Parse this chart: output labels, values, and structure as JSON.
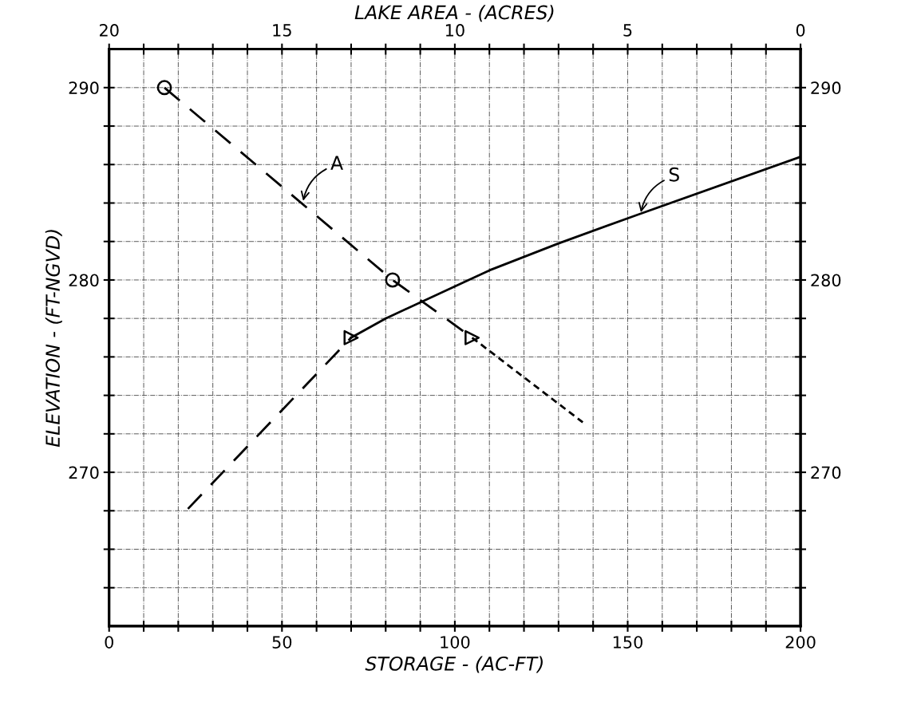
{
  "chart_data": {
    "type": "line",
    "xlabel": "STORAGE - (AC-FT)",
    "x2label": "LAKE AREA - (ACRES)",
    "ylabel": "ELEVATION - (FT-NGVD)",
    "xlim": [
      0,
      200
    ],
    "xticks": [
      0,
      {
        "value": 10,
        "label": null
      },
      {
        "value": 20,
        "label": null
      },
      {
        "value": 30,
        "label": null
      },
      {
        "value": 40,
        "label": null
      },
      50,
      {
        "value": 60,
        "label": null
      },
      {
        "value": 70,
        "label": null
      },
      {
        "value": 80,
        "label": null
      },
      {
        "value": 90,
        "label": null
      },
      100,
      {
        "value": 110,
        "label": null
      },
      {
        "value": 120,
        "label": null
      },
      {
        "value": 130,
        "label": null
      },
      {
        "value": 140,
        "label": null
      },
      150,
      {
        "value": 160,
        "label": null
      },
      {
        "value": 170,
        "label": null
      },
      {
        "value": 180,
        "label": null
      },
      {
        "value": 190,
        "label": null
      },
      200
    ],
    "x2lim": [
      20,
      0
    ],
    "x2ticks": [
      20,
      {
        "value": 19,
        "label": null
      },
      {
        "value": 18,
        "label": null
      },
      {
        "value": 17,
        "label": null
      },
      {
        "value": 16,
        "label": null
      },
      15,
      {
        "value": 14,
        "label": null
      },
      {
        "value": 13,
        "label": null
      },
      {
        "value": 12,
        "label": null
      },
      {
        "value": 11,
        "label": null
      },
      10,
      {
        "value": 9,
        "label": null
      },
      {
        "value": 8,
        "label": null
      },
      {
        "value": 7,
        "label": null
      },
      {
        "value": 6,
        "label": null
      },
      5,
      {
        "value": 4,
        "label": null
      },
      {
        "value": 3,
        "label": null
      },
      {
        "value": 2,
        "label": null
      },
      {
        "value": 1,
        "label": null
      },
      0
    ],
    "ylim": [
      262,
      292
    ],
    "yticks": [
      {
        "value": 264,
        "label": null
      },
      {
        "value": 266,
        "label": null
      },
      {
        "value": 268,
        "label": null
      },
      270,
      {
        "value": 272,
        "label": null
      },
      {
        "value": 274,
        "label": null
      },
      {
        "value": 276,
        "label": null
      },
      {
        "value": 278,
        "label": null
      },
      280,
      {
        "value": 282,
        "label": null
      },
      {
        "value": 284,
        "label": null
      },
      {
        "value": 286,
        "label": null
      },
      {
        "value": 288,
        "label": null
      },
      290
    ],
    "y2lim": [
      262,
      292
    ],
    "y2ticks": [
      {
        "value": 264,
        "label": null
      },
      {
        "value": 266,
        "label": null
      },
      {
        "value": 268,
        "label": null
      },
      270,
      {
        "value": 272,
        "label": null
      },
      {
        "value": 274,
        "label": null
      },
      {
        "value": 276,
        "label": null
      },
      {
        "value": 278,
        "label": null
      },
      280,
      {
        "value": 282,
        "label": null
      },
      {
        "value": 284,
        "label": null
      },
      {
        "value": 286,
        "label": null
      },
      {
        "value": 288,
        "label": null
      },
      290
    ],
    "grid": true,
    "series": [
      {
        "axis": "x2",
        "color": "#000000",
        "line_style": "dashed",
        "marker": "none",
        "x": [
          18.4,
          11.8,
          9.5
        ],
        "values": [
          290,
          280,
          277
        ]
      },
      {
        "axis": "x2",
        "color": "#000000",
        "line_style": "dotted",
        "marker": "none",
        "x": [
          9.5,
          6.3
        ],
        "values": [
          277,
          272.6
        ]
      },
      {
        "color": "#000000",
        "line_style": "dashed",
        "marker": "none",
        "x": [
          22.8,
          70
        ],
        "values": [
          268.1,
          277
        ]
      },
      {
        "color": "#000000",
        "line_style": "solid",
        "marker": "none",
        "x": [
          70,
          80,
          104,
          110,
          130,
          153,
          200
        ],
        "values": [
          277,
          278,
          280,
          280.5,
          281.9,
          283.4,
          286.4
        ]
      },
      {
        "type": "scatter",
        "axis": "x2",
        "color": "#000000",
        "marker": "circle",
        "x": [
          18.4,
          11.8
        ],
        "values": [
          290,
          280
        ]
      },
      {
        "type": "scatter",
        "axis": "x2",
        "color": "#000000",
        "marker": "triangle",
        "x": [
          9.5
        ],
        "values": [
          277
        ]
      },
      {
        "type": "scatter",
        "color": "#000000",
        "marker": "triangle",
        "x": [
          70
        ],
        "values": [
          277
        ]
      }
    ],
    "annotations": [
      {
        "text": "A",
        "x": 56,
        "y": 284
      },
      {
        "text": "S",
        "x": 153.7,
        "y": 283.4
      }
    ]
  }
}
